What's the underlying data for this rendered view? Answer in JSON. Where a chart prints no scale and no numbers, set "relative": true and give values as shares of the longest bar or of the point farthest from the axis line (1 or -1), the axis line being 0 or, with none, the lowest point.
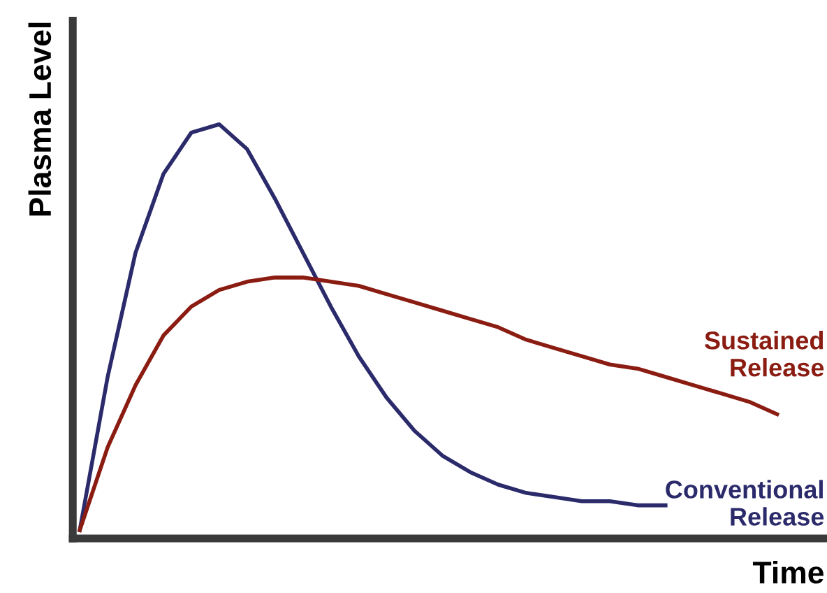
{
  "chart_data": {
    "type": "line",
    "relative": true,
    "xlabel": "Time",
    "ylabel": "Plasma Level",
    "legend": false,
    "grid": false,
    "marker": "none",
    "line_style": "solid",
    "categories": [
      null,
      null,
      null,
      null,
      null,
      null,
      null,
      null,
      null,
      null,
      null,
      null,
      null,
      null,
      null,
      null,
      null,
      null,
      null,
      null,
      null,
      null,
      null,
      null,
      null,
      null
    ],
    "series": [
      {
        "name": "Conventional\nRelease",
        "color": "#2b2a6b",
        "values": [
          0.02,
          0.39,
          0.69,
          0.88,
          0.98,
          1.0,
          0.94,
          0.82,
          0.69,
          0.56,
          0.44,
          0.34,
          0.26,
          0.2,
          0.16,
          0.13,
          0.11,
          0.1,
          0.09,
          0.09,
          0.08,
          0.08,
          null,
          null,
          null,
          null
        ]
      },
      {
        "name": "Sustained\nRelease",
        "color": "#8a1c12",
        "values": [
          0.02,
          0.22,
          0.37,
          0.49,
          0.56,
          0.6,
          0.62,
          0.63,
          0.63,
          0.62,
          0.61,
          0.59,
          0.57,
          0.55,
          0.53,
          0.51,
          0.48,
          0.46,
          0.44,
          0.42,
          0.41,
          0.39,
          0.37,
          0.35,
          0.33,
          0.3
        ]
      }
    ]
  }
}
